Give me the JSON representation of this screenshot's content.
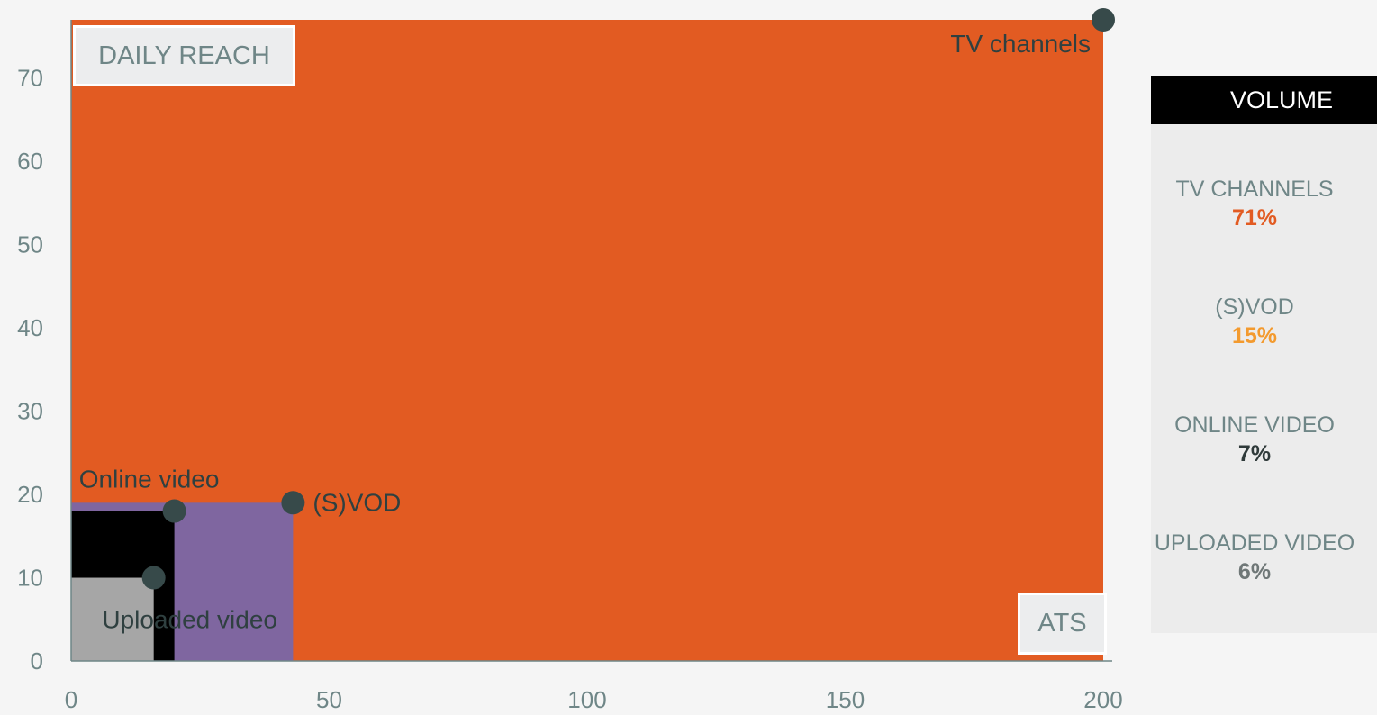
{
  "chart_data": {
    "type": "scatter",
    "xlabel": "",
    "ylabel": "",
    "xlim": [
      0,
      200
    ],
    "ylim": [
      0,
      77
    ],
    "x_ticks": [
      "0",
      "50",
      "100",
      "150",
      "200"
    ],
    "y_ticks": [
      "0",
      "10",
      "20",
      "30",
      "40",
      "50",
      "60",
      "70"
    ],
    "axis_titles": {
      "y_box": "DAILY REACH",
      "x_box": "ATS"
    },
    "points": [
      {
        "name": "TV channels",
        "x": 200,
        "y": 77,
        "color": "#e25b22"
      },
      {
        "name": "(S)VOD",
        "x": 43,
        "y": 19,
        "color": "#7f66a0"
      },
      {
        "name": "Online video",
        "x": 20,
        "y": 18,
        "color": "#000000"
      },
      {
        "name": "Uploaded video",
        "x": 16,
        "y": 10,
        "color": "#a6a6a6"
      }
    ],
    "marker_color": "#374a4a"
  },
  "legend": {
    "title": "VOLUME",
    "items": [
      {
        "name": "TV CHANNELS",
        "value": "71%",
        "color": "#e25b22"
      },
      {
        "name": "(S)VOD",
        "value": "15%",
        "color": "#f39a2e"
      },
      {
        "name": "ONLINE VIDEO",
        "value": "7%",
        "color": "#2f3a3a"
      },
      {
        "name": "UPLOADED VIDEO",
        "value": "6%",
        "color": "#6f7777"
      }
    ]
  }
}
